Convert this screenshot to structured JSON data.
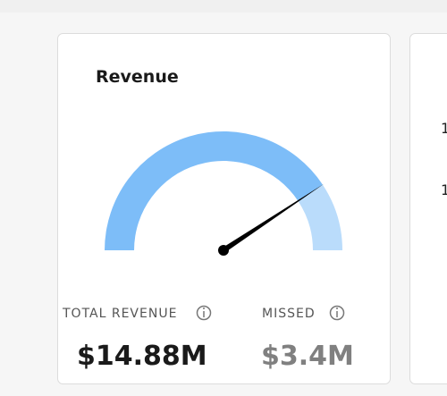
{
  "card": {
    "title": "Revenue",
    "stats": [
      {
        "label": "TOTAL REVENUE",
        "value": 14.88,
        "value_label": "$14.88M",
        "color": "#7dbdf8"
      },
      {
        "label": "MISSED",
        "value": 3.4,
        "value_label": "$3.4M",
        "color": "#badcfb"
      }
    ]
  },
  "side_card": {
    "labels": [
      "1",
      "1"
    ]
  }
}
